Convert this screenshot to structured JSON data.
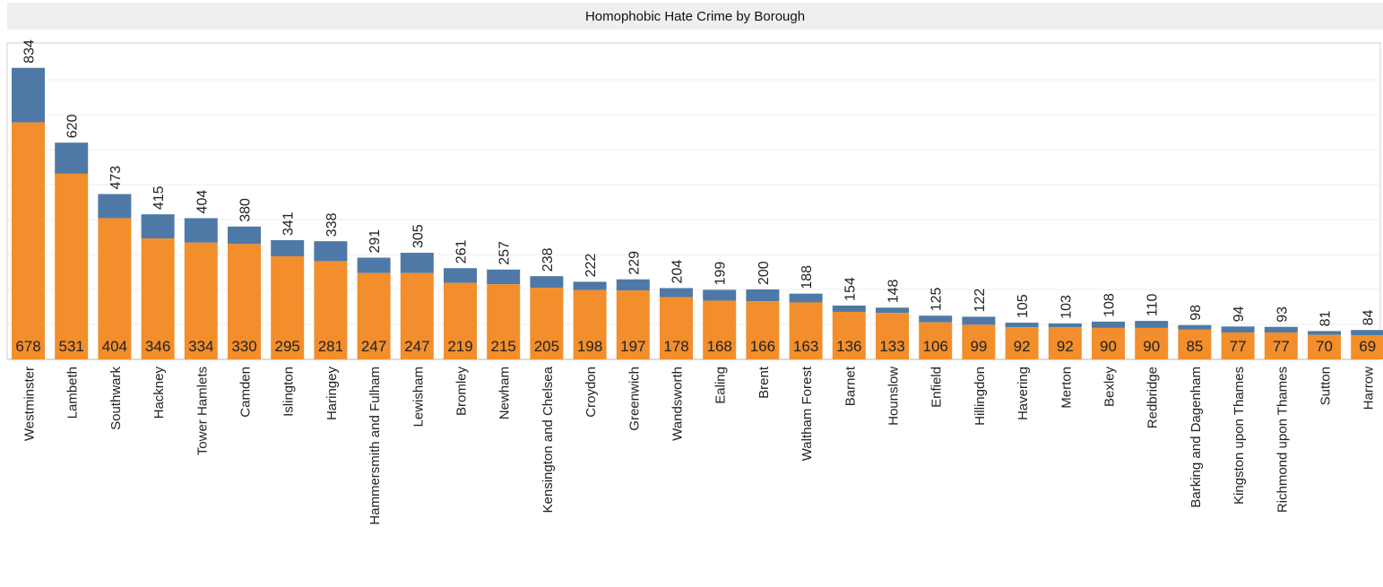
{
  "title": "Homophobic Hate Crime by Borough",
  "colors": {
    "bottom_segment": "#F28E2B",
    "top_segment": "#4E79A7",
    "gridline": "#ececec",
    "frame": "#d0d0d0",
    "title_bg": "#f0efed"
  },
  "chart_data": {
    "type": "bar",
    "stacked": true,
    "title": "Homophobic Hate Crime by Borough",
    "xlabel": "",
    "ylabel": "",
    "ylim": [
      0,
      900
    ],
    "grid": true,
    "legend": "none",
    "categories": [
      "Westminster",
      "Lambeth",
      "Southwark",
      "Hackney",
      "Tower Hamlets",
      "Camden",
      "Islington",
      "Haringey",
      "Hammersmith and Fulham",
      "Lewisham",
      "Bromley",
      "Newham",
      "Kensington and Chelsea",
      "Croydon",
      "Greenwich",
      "Wandsworth",
      "Ealing",
      "Brent",
      "Waltham Forest",
      "Barnet",
      "Hounslow",
      "Enfield",
      "Hillingdon",
      "Havering",
      "Merton",
      "Bexley",
      "Redbridge",
      "Barking and Dagenham",
      "Kingston upon Thames",
      "Richmond upon Thames",
      "Sutton",
      "Harrow"
    ],
    "series": [
      {
        "color": "#F28E2B",
        "values": [
          678,
          531,
          404,
          346,
          334,
          330,
          295,
          281,
          247,
          247,
          219,
          215,
          205,
          198,
          197,
          178,
          168,
          166,
          163,
          136,
          133,
          106,
          99,
          92,
          92,
          90,
          90,
          85,
          77,
          77,
          70,
          69
        ]
      }
    ],
    "totals": [
      834,
      620,
      473,
      415,
      404,
      380,
      341,
      338,
      291,
      305,
      261,
      257,
      238,
      222,
      229,
      204,
      199,
      200,
      188,
      154,
      148,
      125,
      122,
      105,
      103,
      108,
      110,
      98,
      94,
      93,
      81,
      84
    ]
  }
}
